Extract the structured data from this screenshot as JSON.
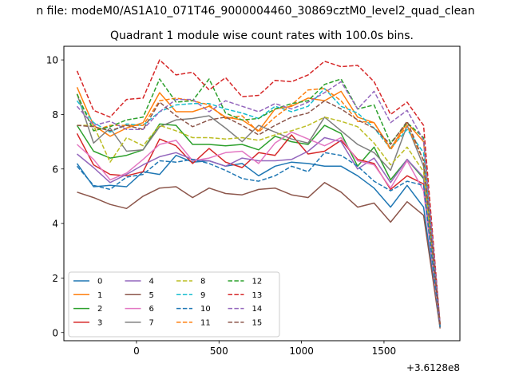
{
  "chart_data": {
    "type": "line",
    "suptitle": "n file: modeM0/AS1A10_071T46_9000004460_30869cztM0_level2_quad_clean",
    "title": "Quadrant 1 module wise count rates with 100.0s bins.",
    "xlabel": "",
    "ylabel": "",
    "x_offset_label": "+3.6128e8",
    "xlim": [
      -440,
      1960
    ],
    "ylim": [
      -0.3,
      10.5
    ],
    "xticks": [
      0,
      500,
      1000,
      1500
    ],
    "yticks": [
      0,
      2,
      4,
      6,
      8,
      10
    ],
    "x": [
      -360,
      -260,
      -160,
      -60,
      40,
      140,
      240,
      340,
      440,
      540,
      640,
      740,
      840,
      940,
      1040,
      1140,
      1240,
      1340,
      1440,
      1540,
      1640,
      1740,
      1840
    ],
    "series": [
      {
        "name": "0",
        "color": "#1f77b4",
        "dash": "solid",
        "values": [
          6.2,
          5.35,
          5.4,
          5.35,
          5.9,
          5.8,
          6.5,
          6.25,
          6.3,
          6.1,
          6.2,
          5.75,
          6.1,
          6.25,
          6.2,
          6.1,
          6.1,
          5.75,
          5.3,
          4.6,
          5.4,
          4.6,
          0.2
        ]
      },
      {
        "name": "1",
        "color": "#ff7f0e",
        "dash": "solid",
        "values": [
          9.0,
          7.6,
          7.2,
          7.5,
          7.7,
          8.8,
          8.1,
          8.1,
          8.3,
          7.9,
          7.8,
          7.4,
          8.2,
          8.3,
          8.6,
          8.5,
          8.85,
          7.9,
          7.7,
          6.75,
          7.7,
          7.0,
          0.3
        ]
      },
      {
        "name": "2",
        "color": "#2ca02c",
        "dash": "solid",
        "values": [
          7.6,
          6.65,
          6.4,
          6.5,
          6.7,
          7.65,
          7.6,
          6.9,
          6.9,
          6.85,
          6.9,
          6.7,
          7.2,
          7.0,
          6.9,
          7.6,
          7.3,
          6.1,
          6.8,
          5.6,
          6.35,
          5.65,
          0.25
        ]
      },
      {
        "name": "3",
        "color": "#d62728",
        "dash": "solid",
        "values": [
          7.3,
          6.15,
          5.8,
          5.75,
          5.9,
          7.1,
          6.85,
          6.2,
          6.75,
          6.25,
          6.05,
          6.6,
          6.5,
          7.25,
          6.55,
          6.65,
          7.05,
          6.35,
          6.2,
          5.25,
          5.75,
          5.45,
          0.2
        ]
      },
      {
        "name": "4",
        "color": "#9467bd",
        "dash": "solid",
        "values": [
          6.55,
          6.05,
          5.5,
          5.8,
          6.15,
          6.45,
          6.6,
          6.35,
          6.3,
          6.1,
          6.4,
          6.3,
          6.3,
          6.35,
          6.65,
          7.15,
          7.0,
          6.0,
          6.4,
          5.5,
          6.35,
          5.7,
          0.2
        ]
      },
      {
        "name": "5",
        "color": "#8c564b",
        "dash": "solid",
        "values": [
          5.15,
          4.95,
          4.7,
          4.55,
          5.0,
          5.3,
          5.35,
          4.95,
          5.3,
          5.1,
          5.05,
          5.25,
          5.3,
          5.05,
          4.95,
          5.5,
          5.15,
          4.6,
          4.75,
          4.05,
          4.8,
          4.3,
          0.15
        ]
      },
      {
        "name": "6",
        "color": "#e377c2",
        "dash": "solid",
        "values": [
          6.9,
          6.35,
          5.6,
          5.85,
          6.35,
          6.9,
          7.05,
          6.3,
          6.4,
          6.6,
          6.65,
          6.2,
          6.95,
          7.35,
          7.1,
          6.85,
          7.15,
          6.3,
          6.15,
          5.3,
          6.3,
          5.2,
          0.2
        ]
      },
      {
        "name": "7",
        "color": "#7f7f7f",
        "dash": "solid",
        "values": [
          8.75,
          6.95,
          7.5,
          6.65,
          6.7,
          7.55,
          7.8,
          7.85,
          7.95,
          7.5,
          7.0,
          7.6,
          7.35,
          7.1,
          6.95,
          7.9,
          7.4,
          6.9,
          6.6,
          5.95,
          7.6,
          6.1,
          0.2
        ]
      },
      {
        "name": "8",
        "color": "#bcbd22",
        "dash": "dashed",
        "values": [
          7.6,
          7.6,
          6.25,
          7.15,
          6.85,
          7.6,
          7.4,
          7.15,
          7.15,
          7.1,
          7.15,
          7.05,
          7.25,
          7.4,
          7.6,
          7.9,
          7.75,
          7.55,
          6.95,
          6.15,
          6.8,
          5.9,
          0.2
        ]
      },
      {
        "name": "9",
        "color": "#17becf",
        "dash": "dashed",
        "values": [
          8.5,
          7.7,
          7.35,
          7.65,
          7.6,
          8.1,
          8.35,
          8.4,
          8.4,
          8.2,
          8.05,
          7.85,
          8.3,
          8.1,
          8.3,
          8.95,
          8.3,
          8.05,
          7.5,
          6.75,
          7.45,
          6.6,
          0.3
        ]
      },
      {
        "name": "10",
        "color": "#1f77b4",
        "dash": "dashed",
        "values": [
          6.1,
          5.4,
          5.25,
          5.7,
          5.8,
          6.3,
          6.25,
          6.35,
          6.2,
          5.95,
          5.65,
          5.55,
          5.75,
          6.1,
          5.9,
          6.6,
          6.5,
          6.1,
          5.55,
          5.2,
          5.55,
          5.4,
          0.2
        ]
      },
      {
        "name": "11",
        "color": "#ff7f0e",
        "dash": "dashed",
        "values": [
          8.75,
          7.4,
          7.6,
          7.6,
          7.6,
          8.5,
          8.6,
          8.5,
          8.35,
          7.85,
          7.95,
          7.35,
          7.9,
          8.35,
          8.9,
          8.95,
          8.5,
          7.75,
          7.7,
          6.7,
          7.6,
          6.3,
          0.3
        ]
      },
      {
        "name": "12",
        "color": "#2ca02c",
        "dash": "dashed",
        "values": [
          8.75,
          7.4,
          7.55,
          7.8,
          7.9,
          9.3,
          8.45,
          8.5,
          9.3,
          8.05,
          7.8,
          7.85,
          8.2,
          8.4,
          8.5,
          9.1,
          9.3,
          8.2,
          8.35,
          6.95,
          7.7,
          7.15,
          0.3
        ]
      },
      {
        "name": "13",
        "color": "#d62728",
        "dash": "dashed",
        "values": [
          9.6,
          8.15,
          7.9,
          8.55,
          8.6,
          10.0,
          9.45,
          9.55,
          8.9,
          9.35,
          8.65,
          8.7,
          9.25,
          9.2,
          9.45,
          9.95,
          9.75,
          9.8,
          9.2,
          8.0,
          8.45,
          7.6,
          0.3
        ]
      },
      {
        "name": "14",
        "color": "#9467bd",
        "dash": "dashed",
        "values": [
          8.3,
          7.6,
          7.75,
          7.45,
          7.45,
          8.1,
          8.55,
          8.55,
          8.1,
          8.5,
          8.3,
          8.1,
          8.4,
          8.2,
          8.45,
          8.8,
          9.2,
          8.2,
          8.85,
          7.7,
          8.15,
          7.05,
          0.3
        ]
      },
      {
        "name": "15",
        "color": "#8c564b",
        "dash": "dashed",
        "values": [
          7.6,
          7.55,
          7.4,
          7.6,
          7.45,
          8.45,
          7.95,
          7.55,
          7.8,
          7.9,
          7.6,
          7.25,
          7.6,
          7.9,
          8.05,
          8.5,
          8.2,
          7.8,
          7.5,
          6.9,
          7.75,
          6.3,
          0.25
        ]
      }
    ],
    "legend": {
      "location": "lower-left",
      "columns": 4
    },
    "grid": false
  }
}
